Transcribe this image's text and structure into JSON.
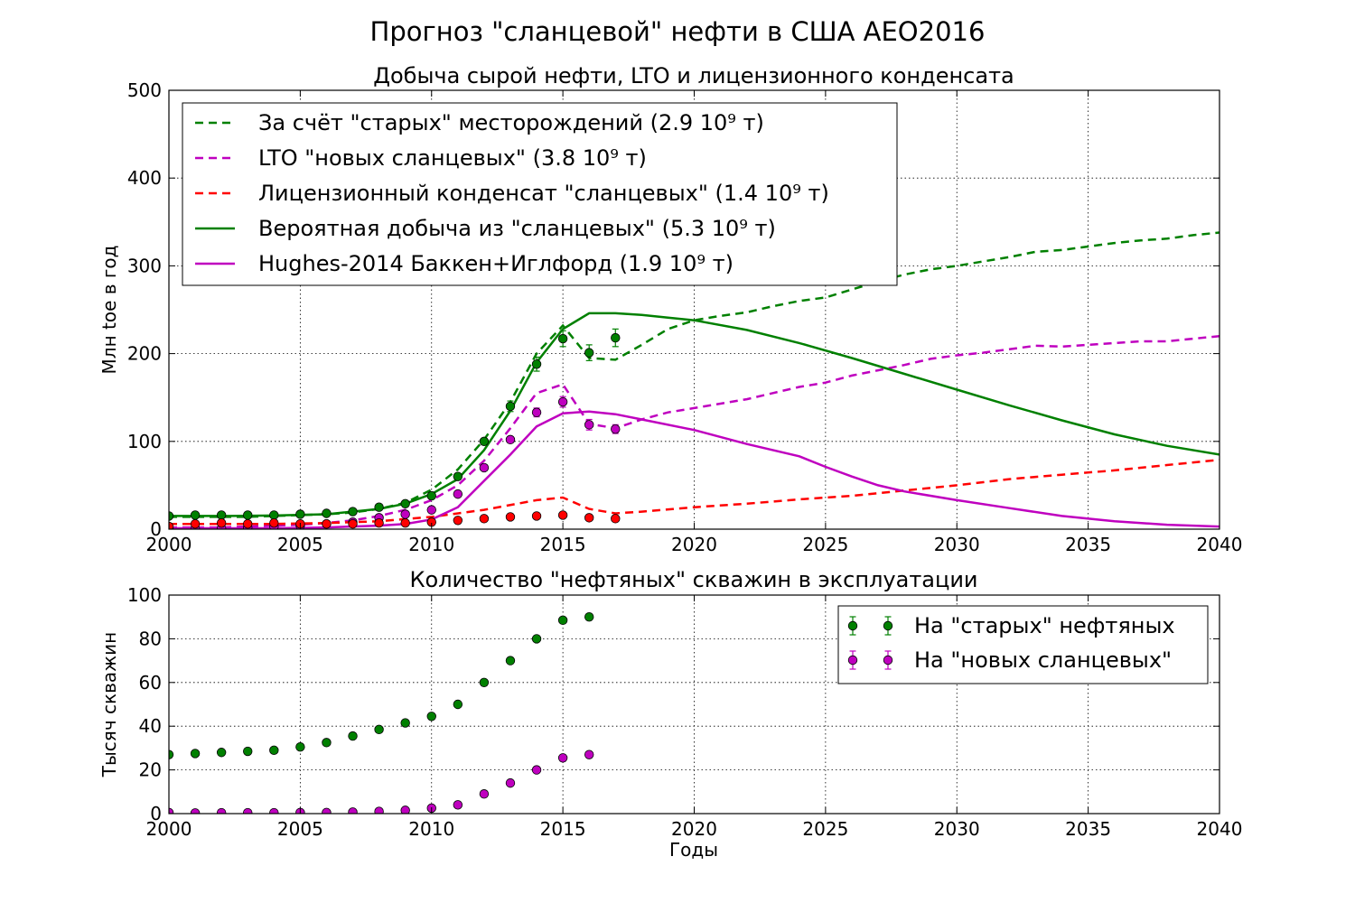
{
  "suptitle": "Прогноз \"сланцевой\" нефти в США AEO2016",
  "chart_data": [
    {
      "type": "line",
      "title": "Добыча сырой нефти, LTO и лицензионного конденсата",
      "xlabel": "",
      "ylabel": "Млн toe в год",
      "xlim": [
        2000,
        2040
      ],
      "ylim": [
        0,
        500
      ],
      "xticks": [
        "2000",
        "2005",
        "2010",
        "2015",
        "2020",
        "2025",
        "2030",
        "2035",
        "2040"
      ],
      "yticks": [
        "0",
        "100",
        "200",
        "300",
        "400",
        "500"
      ],
      "grid": true,
      "legend_position": "upper-left",
      "series": [
        {
          "name": "За счёт \"старых\" месторождений (2.9 10⁹ т)",
          "style": "dashed",
          "color": "#008000",
          "x": [
            2000,
            2001,
            2002,
            2003,
            2004,
            2005,
            2006,
            2007,
            2008,
            2009,
            2010,
            2011,
            2012,
            2013,
            2014,
            2015,
            2016,
            2017,
            2018,
            2019,
            2020,
            2021,
            2022,
            2023,
            2024,
            2025,
            2026,
            2027,
            2028,
            2029,
            2030,
            2031,
            2032,
            2033,
            2034,
            2035,
            2036,
            2037,
            2038,
            2039,
            2040
          ],
          "y": [
            14,
            14,
            14,
            14,
            15,
            16,
            17,
            19,
            23,
            30,
            45,
            68,
            102,
            145,
            200,
            232,
            195,
            193,
            210,
            228,
            238,
            243,
            247,
            254,
            260,
            264,
            273,
            282,
            290,
            296,
            300,
            305,
            310,
            316,
            318,
            322,
            326,
            329,
            331,
            335,
            338
          ]
        },
        {
          "name": "LTO \"новых сланцевых\" (3.8 10⁹ т)",
          "style": "dashed",
          "color": "#bf00bf",
          "x": [
            2000,
            2001,
            2002,
            2003,
            2004,
            2005,
            2006,
            2007,
            2008,
            2009,
            2010,
            2011,
            2012,
            2013,
            2014,
            2015,
            2016,
            2017,
            2018,
            2019,
            2020,
            2021,
            2022,
            2023,
            2024,
            2025,
            2026,
            2027,
            2028,
            2029,
            2030,
            2031,
            2032,
            2033,
            2034,
            2035,
            2036,
            2037,
            2038,
            2039,
            2040
          ],
          "y": [
            2,
            2,
            2,
            3,
            4,
            5,
            7,
            10,
            15,
            22,
            33,
            50,
            78,
            115,
            155,
            165,
            120,
            115,
            125,
            133,
            138,
            143,
            148,
            155,
            162,
            167,
            175,
            181,
            187,
            194,
            198,
            201,
            205,
            209,
            208,
            210,
            212,
            214,
            214,
            217,
            220
          ]
        },
        {
          "name": "Лицензионный конденсат \"сланцевых\" (1.4 10⁹ т)",
          "style": "dashed",
          "color": "#ff0000",
          "x": [
            2000,
            2002,
            2004,
            2006,
            2008,
            2010,
            2012,
            2014,
            2015,
            2016,
            2017,
            2018,
            2020,
            2022,
            2024,
            2026,
            2028,
            2030,
            2032,
            2034,
            2036,
            2038,
            2040
          ],
          "y": [
            6,
            6,
            6,
            7,
            9,
            14,
            22,
            33,
            36,
            23,
            18,
            20,
            25,
            29,
            34,
            38,
            44,
            50,
            57,
            62,
            67,
            73,
            79
          ]
        },
        {
          "name": "Вероятная добыча из \"сланцевых\" (5.3 10⁹ т)",
          "style": "solid",
          "color": "#008000",
          "x": [
            2000,
            2002,
            2004,
            2006,
            2008,
            2009,
            2010,
            2011,
            2012,
            2013,
            2014,
            2015,
            2016,
            2017,
            2018,
            2019,
            2020,
            2022,
            2024,
            2026,
            2028,
            2030,
            2032,
            2034,
            2036,
            2038,
            2040
          ],
          "y": [
            15,
            15,
            15.5,
            17,
            23,
            29,
            40,
            57,
            90,
            135,
            190,
            228,
            246,
            246,
            244,
            241,
            238,
            227,
            212,
            195,
            177,
            159,
            141,
            124,
            108,
            95,
            85
          ]
        },
        {
          "name": "Hughes-2014 Баккен+Иглфорд (1.9 10⁹ т)",
          "style": "solid",
          "color": "#bf00bf",
          "x": [
            2000,
            2002,
            2004,
            2006,
            2008,
            2009,
            2010,
            2011,
            2012,
            2013,
            2014,
            2015,
            2016,
            2017,
            2018,
            2020,
            2022,
            2024,
            2025,
            2026,
            2027,
            2028,
            2030,
            2032,
            2034,
            2036,
            2038,
            2040
          ],
          "y": [
            1,
            1,
            1,
            2,
            4,
            6,
            11,
            25,
            55,
            85,
            117,
            132,
            134,
            131,
            125,
            113,
            97,
            83,
            71,
            60,
            50,
            43,
            33,
            24,
            15,
            9,
            5,
            3
          ]
        },
        {
          "name": "",
          "style": "markers",
          "color": "#008000",
          "x": [
            2000,
            2001,
            2002,
            2003,
            2004,
            2005,
            2006,
            2007,
            2008,
            2009,
            2010,
            2011,
            2012,
            2013,
            2014,
            2015,
            2016,
            2017
          ],
          "y": [
            15,
            16,
            16,
            16,
            16,
            17,
            18,
            20,
            25,
            29,
            38,
            60,
            100,
            140,
            188,
            217,
            201,
            218
          ],
          "err": [
            0,
            0,
            0,
            0,
            0,
            0,
            0,
            0,
            0,
            0,
            0,
            0,
            0,
            6,
            8,
            9,
            9,
            10
          ]
        },
        {
          "name": "",
          "style": "markers",
          "color": "#bf00bf",
          "x": [
            2000,
            2001,
            2002,
            2003,
            2004,
            2005,
            2006,
            2007,
            2008,
            2009,
            2010,
            2011,
            2012,
            2013,
            2014,
            2015,
            2016,
            2017
          ],
          "y": [
            1,
            1,
            1,
            2,
            3,
            4,
            6,
            8,
            13,
            17,
            22,
            40,
            70,
            102,
            133,
            145,
            119,
            114
          ],
          "err": [
            0,
            0,
            0,
            0,
            0,
            0,
            0,
            0,
            0,
            0,
            0,
            0,
            0,
            0,
            5,
            6,
            6,
            5
          ]
        },
        {
          "name": "",
          "style": "markers",
          "color": "#ff0000",
          "x": [
            2000,
            2001,
            2002,
            2003,
            2004,
            2005,
            2006,
            2007,
            2008,
            2009,
            2010,
            2011,
            2012,
            2013,
            2014,
            2015,
            2016,
            2017
          ],
          "y": [
            3,
            6,
            7,
            6,
            7,
            6,
            6,
            6,
            7,
            7,
            8,
            10,
            12,
            14,
            15,
            16,
            13,
            12
          ],
          "err": [
            0,
            0,
            0,
            0,
            0,
            0,
            0,
            0,
            0,
            0,
            0,
            0,
            0,
            0,
            0,
            0,
            0,
            0
          ]
        }
      ]
    },
    {
      "type": "scatter",
      "title": "Количество \"нефтяных\" скважин в эксплуатации",
      "xlabel": "Годы",
      "ylabel": "Тысяч скважин",
      "xlim": [
        2000,
        2040
      ],
      "ylim": [
        0,
        100
      ],
      "xticks": [
        "2000",
        "2005",
        "2010",
        "2015",
        "2020",
        "2025",
        "2030",
        "2035",
        "2040"
      ],
      "yticks": [
        "0",
        "20",
        "40",
        "60",
        "80",
        "100"
      ],
      "grid": true,
      "legend_position": "upper-right",
      "series": [
        {
          "name": "На \"старых\" нефтяных",
          "color": "#008000",
          "x": [
            2000,
            2001,
            2002,
            2003,
            2004,
            2005,
            2006,
            2007,
            2008,
            2009,
            2010,
            2011,
            2012,
            2013,
            2014,
            2015,
            2016
          ],
          "y": [
            27,
            27.5,
            28,
            28.5,
            29,
            30.5,
            32.5,
            35.5,
            38.5,
            41.5,
            44.5,
            50,
            60,
            70,
            80,
            88.5,
            90
          ]
        },
        {
          "name": "На \"новых сланцевых\"",
          "color": "#bf00bf",
          "x": [
            2000,
            2001,
            2002,
            2003,
            2004,
            2005,
            2006,
            2007,
            2008,
            2009,
            2010,
            2011,
            2012,
            2013,
            2014,
            2015,
            2016
          ],
          "y": [
            0.5,
            0.3,
            0.4,
            0.4,
            0.4,
            0.5,
            0.5,
            0.7,
            1,
            1.5,
            2.5,
            4,
            9,
            14,
            20,
            25.5,
            27
          ]
        }
      ]
    }
  ]
}
